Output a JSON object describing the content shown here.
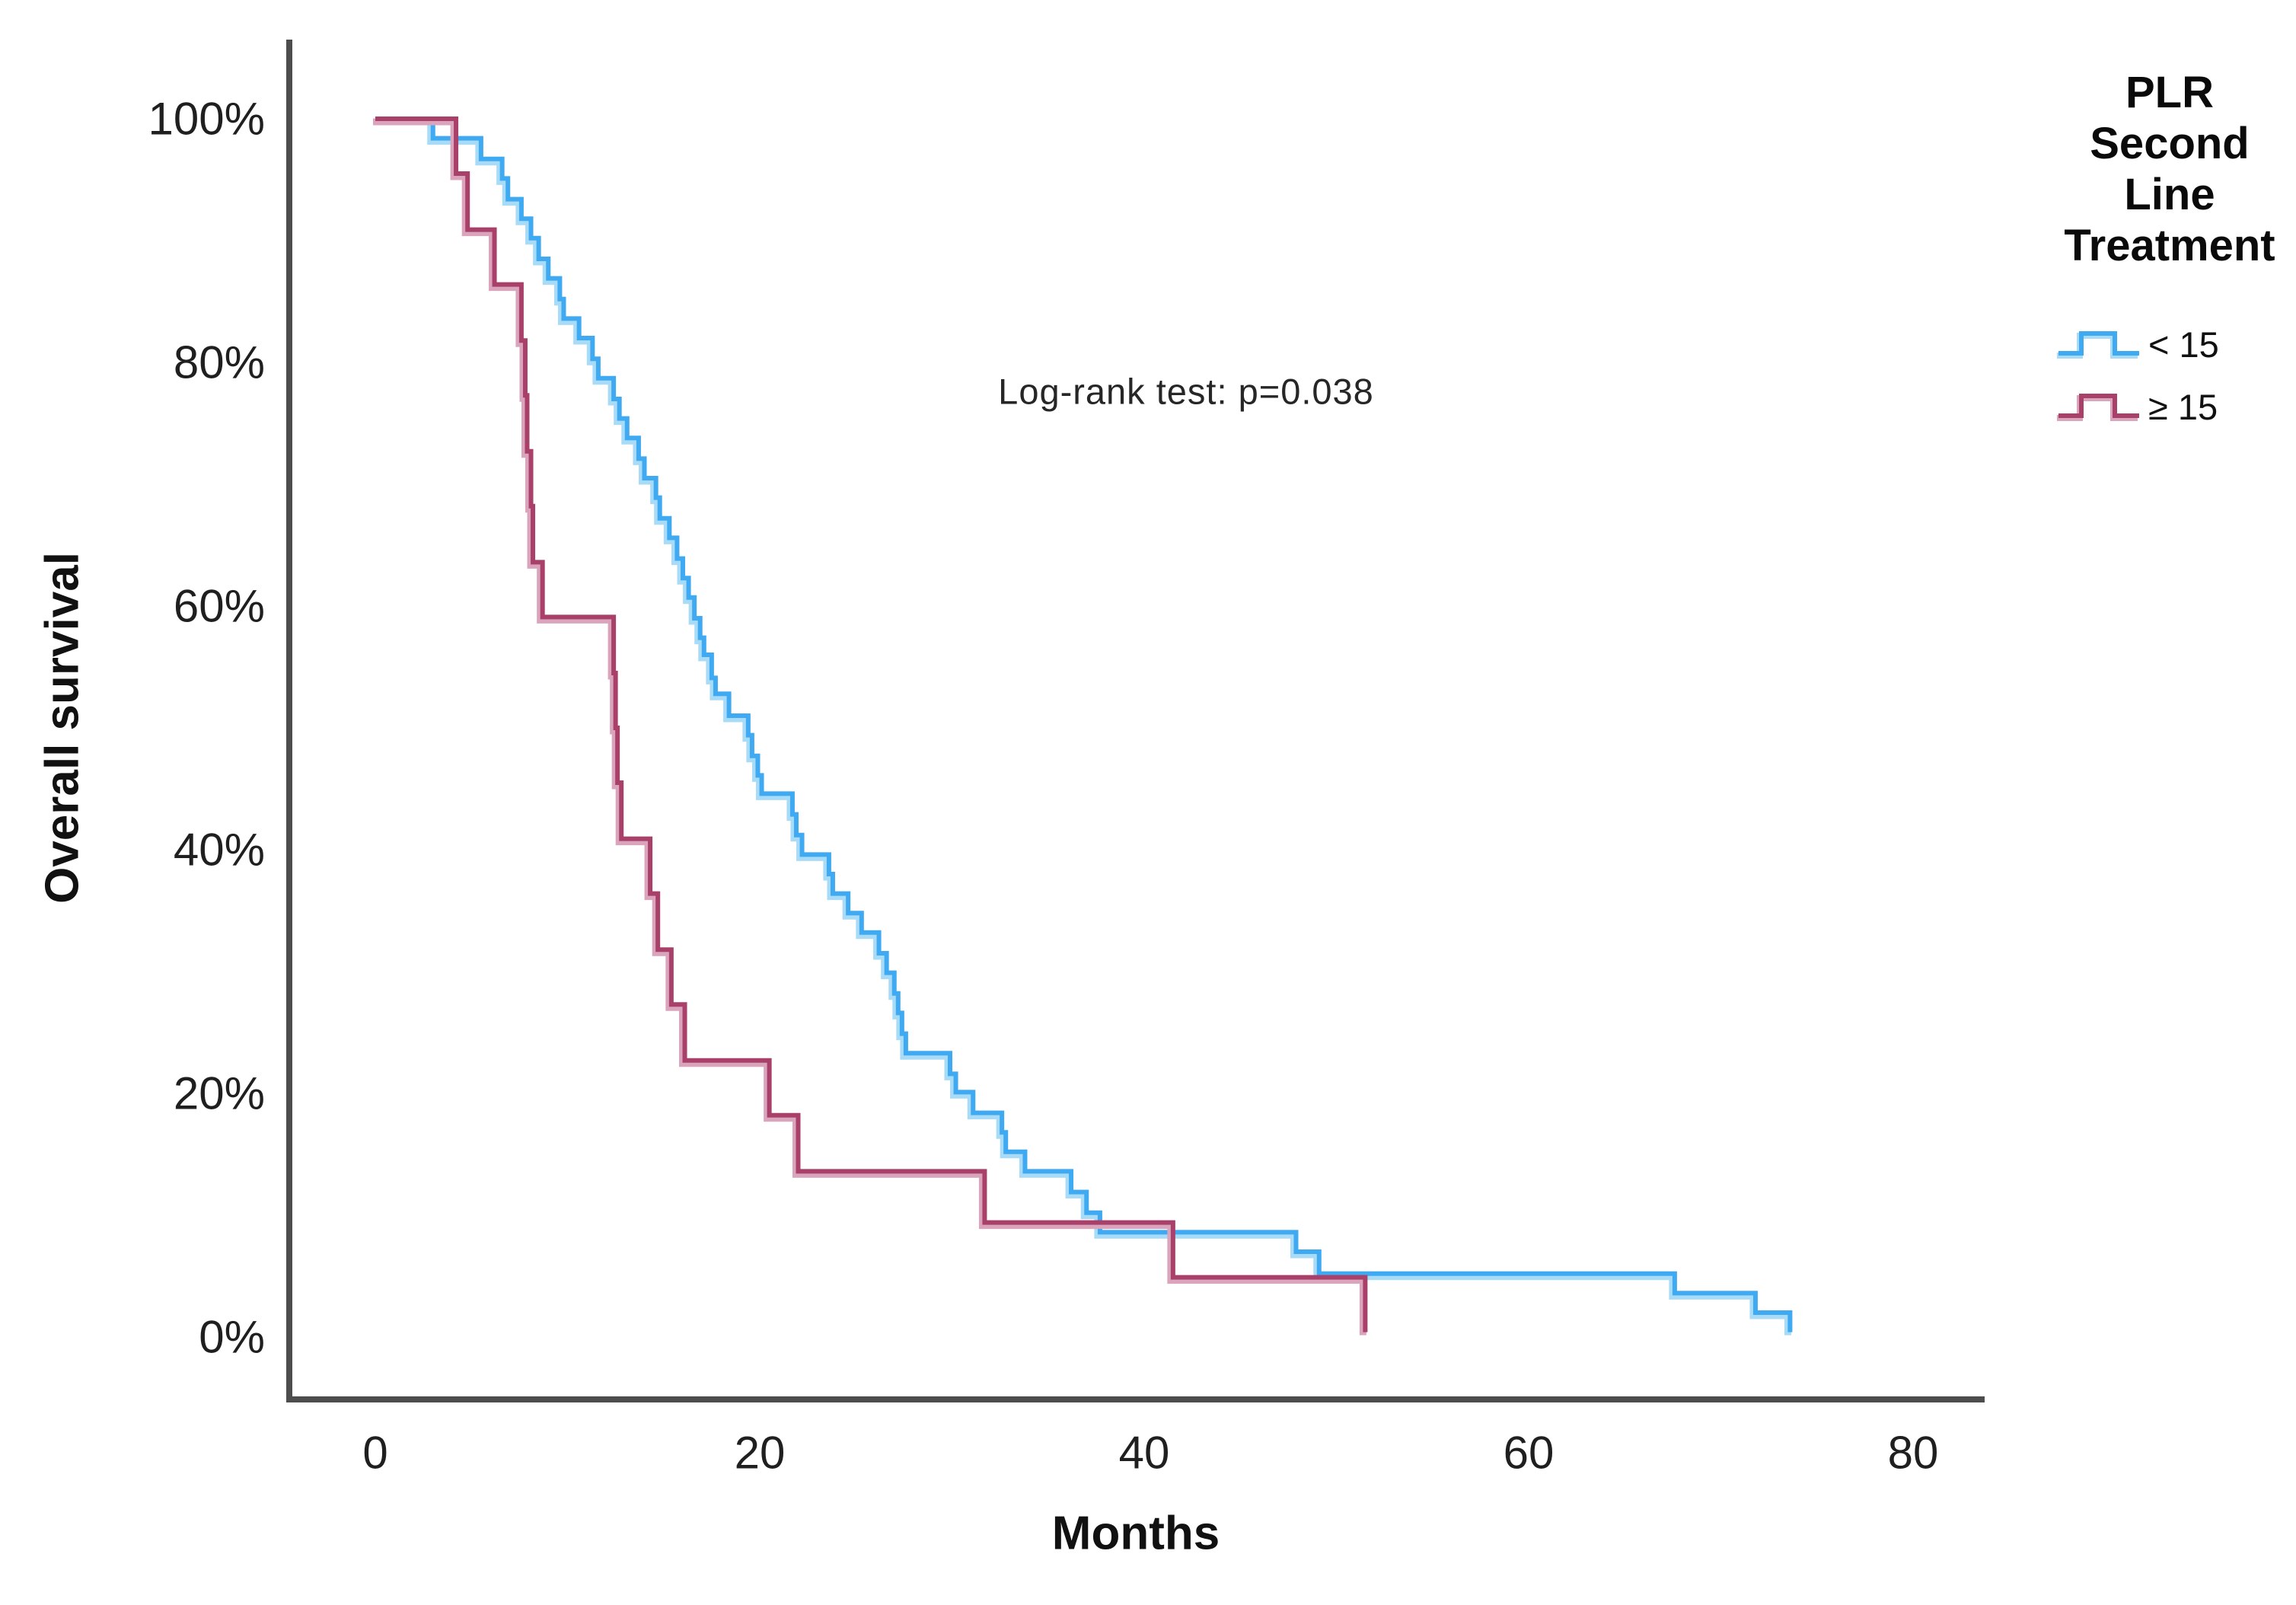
{
  "chart_data": {
    "type": "line",
    "subtype": "kaplan_meier_step",
    "title": "",
    "xlabel": "Months",
    "ylabel": "Overall survival",
    "annotation": "Log-rank test: p=0.038",
    "x_ticks": [
      0,
      20,
      40,
      60,
      80
    ],
    "x_tick_labels": [
      "0",
      "20",
      "40",
      "60",
      "80"
    ],
    "y_ticks": [
      0,
      20,
      40,
      60,
      80,
      100
    ],
    "y_tick_labels": [
      "0%",
      "20%",
      "40%",
      "60%",
      "80%",
      "100%"
    ],
    "xlim": [
      -4.5,
      83.7
    ],
    "ylim": [
      -5.1,
      106.5
    ],
    "grid": false,
    "legend": {
      "title": "PLR Second Line Treatment",
      "title_lines": [
        "PLR",
        "Second",
        "Line",
        "Treatment"
      ],
      "position": "top-right"
    },
    "series": [
      {
        "name": "< 15",
        "color": "#3FA9F1",
        "halo_color": "#A8DBF8",
        "points": [
          [
            0,
            100
          ],
          [
            3,
            98.4
          ],
          [
            5.5,
            96.7
          ],
          [
            6.6,
            95.1
          ],
          [
            6.9,
            93.4
          ],
          [
            7.6,
            91.8
          ],
          [
            8.1,
            90.2
          ],
          [
            8.5,
            88.5
          ],
          [
            9,
            86.9
          ],
          [
            9.6,
            85.2
          ],
          [
            9.8,
            83.6
          ],
          [
            10.6,
            82
          ],
          [
            11.3,
            80.3
          ],
          [
            11.6,
            78.7
          ],
          [
            12.4,
            77
          ],
          [
            12.7,
            75.4
          ],
          [
            13.1,
            73.8
          ],
          [
            13.7,
            72.1
          ],
          [
            14,
            70.5
          ],
          [
            14.6,
            68.9
          ],
          [
            14.8,
            67.2
          ],
          [
            15.3,
            65.6
          ],
          [
            15.7,
            63.9
          ],
          [
            16,
            62.3
          ],
          [
            16.3,
            60.7
          ],
          [
            16.6,
            59
          ],
          [
            16.9,
            57.4
          ],
          [
            17.1,
            56
          ],
          [
            17.5,
            54.1
          ],
          [
            17.7,
            52.8
          ],
          [
            18.4,
            51
          ],
          [
            19.4,
            49.4
          ],
          [
            19.6,
            47.7
          ],
          [
            19.9,
            46.1
          ],
          [
            20.1,
            44.6
          ],
          [
            21.7,
            42.9
          ],
          [
            21.9,
            41.2
          ],
          [
            22.2,
            39.6
          ],
          [
            23.6,
            38
          ],
          [
            23.8,
            36.4
          ],
          [
            24.6,
            34.8
          ],
          [
            25.3,
            33.2
          ],
          [
            26.2,
            31.5
          ],
          [
            26.6,
            29.9
          ],
          [
            27,
            28.2
          ],
          [
            27.2,
            26.6
          ],
          [
            27.4,
            24.9
          ],
          [
            27.6,
            23.3
          ],
          [
            29.9,
            21.6
          ],
          [
            30.2,
            20.1
          ],
          [
            31.1,
            18.4
          ],
          [
            32.6,
            16.8
          ],
          [
            32.8,
            15.2
          ],
          [
            33.8,
            13.6
          ],
          [
            36.2,
            11.9
          ],
          [
            37,
            10.2
          ],
          [
            37.7,
            8.6
          ],
          [
            47.9,
            7
          ],
          [
            49.1,
            5.2
          ],
          [
            67.6,
            3.6
          ],
          [
            71.8,
            2
          ],
          [
            73.6,
            0.4
          ]
        ]
      },
      {
        "name": "≥ 15",
        "color": "#A84069",
        "halo_color": "#DAA5BC",
        "points": [
          [
            0,
            100
          ],
          [
            4.2,
            95.5
          ],
          [
            4.8,
            90.9
          ],
          [
            6.2,
            86.4
          ],
          [
            7.6,
            81.8
          ],
          [
            7.8,
            77.3
          ],
          [
            7.9,
            72.7
          ],
          [
            8.1,
            68.2
          ],
          [
            8.2,
            63.6
          ],
          [
            8.7,
            59.1
          ],
          [
            12.4,
            54.5
          ],
          [
            12.5,
            50
          ],
          [
            12.6,
            45.5
          ],
          [
            12.8,
            40.9
          ],
          [
            14.3,
            36.4
          ],
          [
            14.7,
            31.8
          ],
          [
            15.4,
            27.3
          ],
          [
            16.1,
            22.7
          ],
          [
            20.5,
            18.2
          ],
          [
            22,
            13.6
          ],
          [
            31.7,
            9.4
          ],
          [
            41.5,
            4.9
          ],
          [
            51.5,
            0.4
          ]
        ]
      }
    ]
  },
  "colors": {
    "axis": "#4D4D4D",
    "tick_text": "#1F1F1F",
    "annotation_text": "#262626",
    "background": "#FFFFFF"
  }
}
